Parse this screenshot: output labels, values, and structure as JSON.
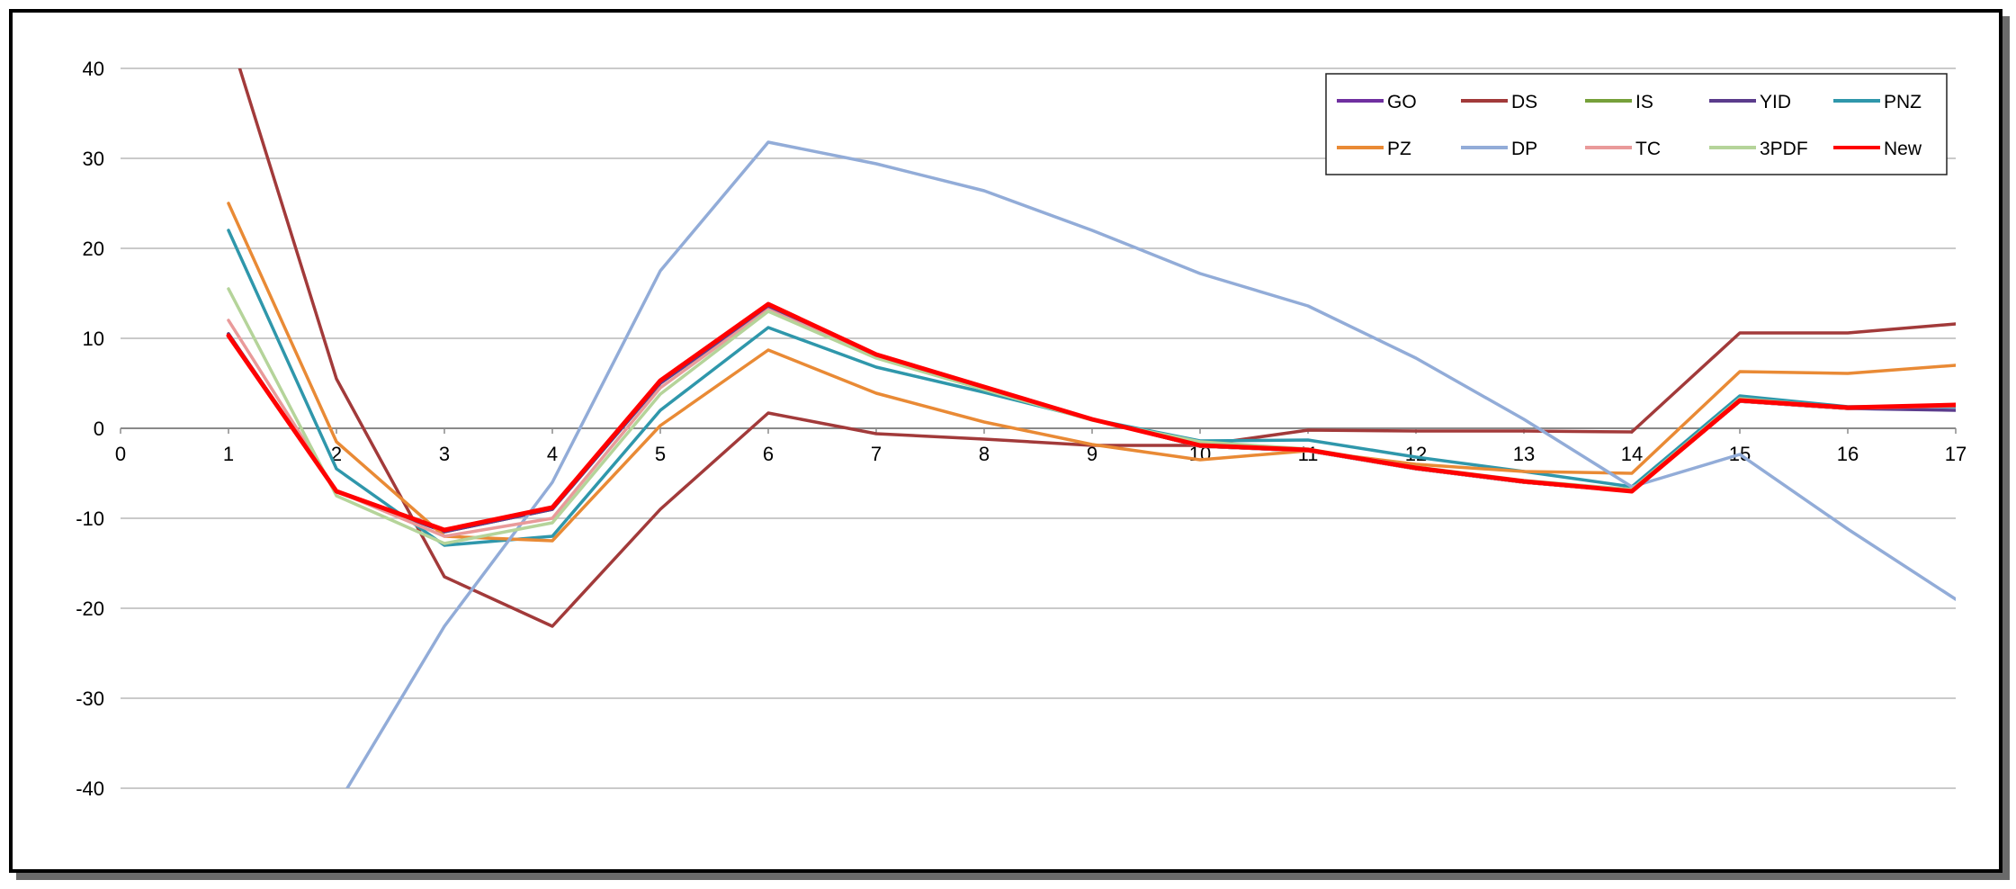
{
  "chart_data": {
    "type": "line",
    "title": "",
    "xlabel": "",
    "ylabel": "",
    "xlim": [
      0,
      17
    ],
    "ylim": [
      -40,
      40
    ],
    "x_ticks": [
      "0",
      "1",
      "2",
      "3",
      "4",
      "5",
      "6",
      "7",
      "8",
      "9",
      "10",
      "11",
      "12",
      "13",
      "14",
      "15",
      "16",
      "17"
    ],
    "y_ticks": [
      "40",
      "30",
      "20",
      "10",
      "0",
      "-10",
      "-20",
      "-30",
      "-40"
    ],
    "grid": "horizontal",
    "legend_position": "top-right",
    "series": [
      {
        "name": "GO",
        "color": "#7030a0",
        "x": [
          1,
          2,
          3,
          4,
          5,
          6,
          7,
          8,
          9,
          10,
          11,
          12,
          13,
          14,
          15,
          16,
          17
        ],
        "y": [
          10.5,
          -7,
          -11.5,
          -9,
          5,
          13.5,
          8,
          4.5,
          1,
          -2,
          -2.5,
          -4.5,
          -6,
          -7,
          3,
          2.2,
          2.5
        ]
      },
      {
        "name": "DS",
        "color": "#a23a3a",
        "x": [
          1,
          2,
          3,
          4,
          5,
          6,
          7,
          8,
          9,
          10,
          11,
          12,
          13,
          14,
          15,
          16,
          17
        ],
        "y": [
          44,
          5.5,
          -16.5,
          -22,
          -9,
          1.7,
          -0.6,
          -1.2,
          -1.9,
          -1.9,
          -0.2,
          -0.3,
          -0.3,
          -0.4,
          10.6,
          10.6,
          11.6
        ]
      },
      {
        "name": "IS",
        "color": "#76a03a",
        "x": [
          1,
          2,
          3,
          4,
          5,
          6,
          7,
          8,
          9,
          10,
          11,
          12,
          13,
          14,
          15,
          16,
          17
        ],
        "y": [
          10.5,
          -7,
          -11.5,
          -9,
          5,
          13.5,
          8,
          4.5,
          1,
          -2,
          -2.5,
          -4.5,
          -6,
          -7,
          3,
          2.2,
          2.5
        ]
      },
      {
        "name": "YID",
        "color": "#5b3c8c",
        "x": [
          1,
          2,
          3,
          4,
          5,
          6,
          7,
          8,
          9,
          10,
          11,
          12,
          13,
          14,
          15,
          16,
          17
        ],
        "y": [
          10.5,
          -7,
          -11.5,
          -9,
          5,
          13.5,
          8,
          4.5,
          1,
          -2,
          -2.5,
          -4.5,
          -6,
          -7,
          3,
          2.2,
          2
        ]
      },
      {
        "name": "PNZ",
        "color": "#2f97ab",
        "x": [
          1,
          2,
          3,
          4,
          5,
          6,
          7,
          8,
          9,
          10,
          11,
          12,
          13,
          14,
          15,
          16,
          17
        ],
        "y": [
          22,
          -4.5,
          -13,
          -12,
          2,
          11.2,
          6.8,
          4,
          1,
          -1.4,
          -1.3,
          -3.2,
          -4.8,
          -6.5,
          3.6,
          2.4,
          2.4
        ]
      },
      {
        "name": "PZ",
        "color": "#e98a35",
        "x": [
          1,
          2,
          3,
          4,
          5,
          6,
          7,
          8,
          9,
          10,
          11,
          12,
          13,
          14,
          15,
          16,
          17
        ],
        "y": [
          25,
          -1.5,
          -12,
          -12.5,
          0.3,
          8.7,
          3.9,
          0.7,
          -1.8,
          -3.5,
          -2.5,
          -4,
          -4.8,
          -5,
          6.3,
          6.1,
          7
        ]
      },
      {
        "name": "DP",
        "color": "#92acd8",
        "x": [
          2.1,
          3,
          4,
          5,
          6,
          7,
          8,
          9,
          10,
          11,
          12,
          13,
          14,
          15,
          16,
          17
        ],
        "y": [
          -40,
          -22,
          -6,
          17.5,
          31.8,
          29.4,
          26.4,
          22,
          17.2,
          13.6,
          7.8,
          1,
          -6.5,
          -2.9,
          -11.2,
          -19
        ]
      },
      {
        "name": "TC",
        "color": "#e99a9a",
        "x": [
          1,
          2,
          3,
          4,
          5,
          6,
          7,
          8,
          9,
          10,
          11,
          12,
          13,
          14,
          15,
          16,
          17
        ],
        "y": [
          12,
          -7,
          -12,
          -10,
          4.5,
          13.2,
          7.9,
          4.4,
          1,
          -2,
          -2.5,
          -4.5,
          -6,
          -7,
          3,
          2.2,
          2.5
        ]
      },
      {
        "name": "3PDF",
        "color": "#b5d49a",
        "x": [
          1,
          2,
          3,
          4,
          5,
          6,
          7,
          8,
          9,
          10,
          11,
          12,
          13,
          14,
          15,
          16,
          17
        ],
        "y": [
          15.5,
          -7.5,
          -12.8,
          -10.5,
          3.8,
          13,
          7.8,
          4.3,
          0.9,
          -1.5,
          -2.3,
          -4.3,
          -5.8,
          -6.8,
          3.3,
          2.3,
          2.6
        ]
      },
      {
        "name": "New",
        "color": "#ff0000",
        "x": [
          1,
          2,
          3,
          4,
          5,
          6,
          7,
          8,
          9,
          10,
          11,
          12,
          13,
          14,
          15,
          16,
          17
        ],
        "y": [
          10.3,
          -7,
          -11.3,
          -8.8,
          5.3,
          13.8,
          8.2,
          4.6,
          1,
          -1.9,
          -2.4,
          -4.4,
          -5.9,
          -7,
          3.1,
          2.3,
          2.6
        ]
      }
    ]
  }
}
